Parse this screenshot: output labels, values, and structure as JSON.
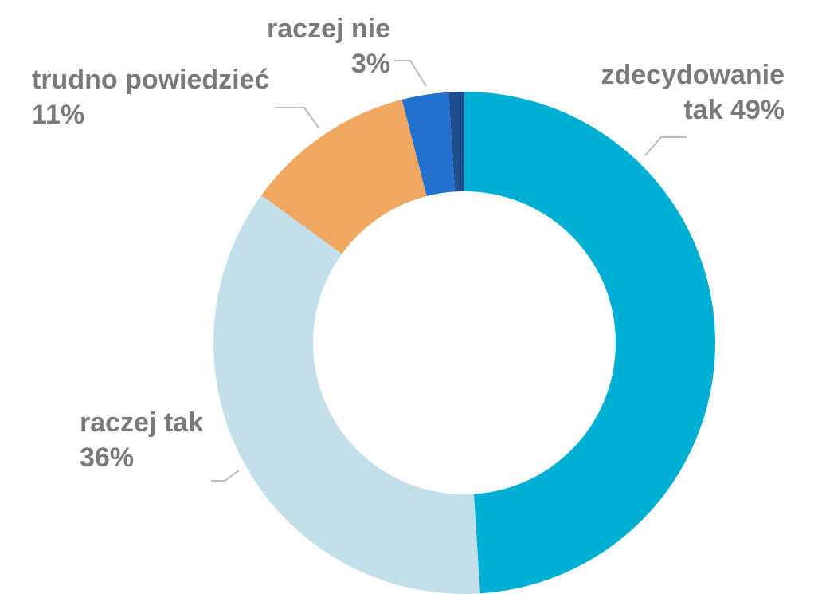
{
  "chart_data": {
    "type": "donut",
    "categories": [
      "zdecydowanie tak",
      "raczej tak",
      "trudno powiedzieć",
      "raczej nie",
      null
    ],
    "values": [
      49,
      36,
      11,
      3,
      1
    ],
    "value_labels": [
      "49%",
      "36%",
      "11%",
      "3%",
      null
    ],
    "colors": [
      "#00afd4",
      "#c2dfea",
      "#f0a860",
      "#2470cf",
      "#1f4e8c"
    ]
  }
}
